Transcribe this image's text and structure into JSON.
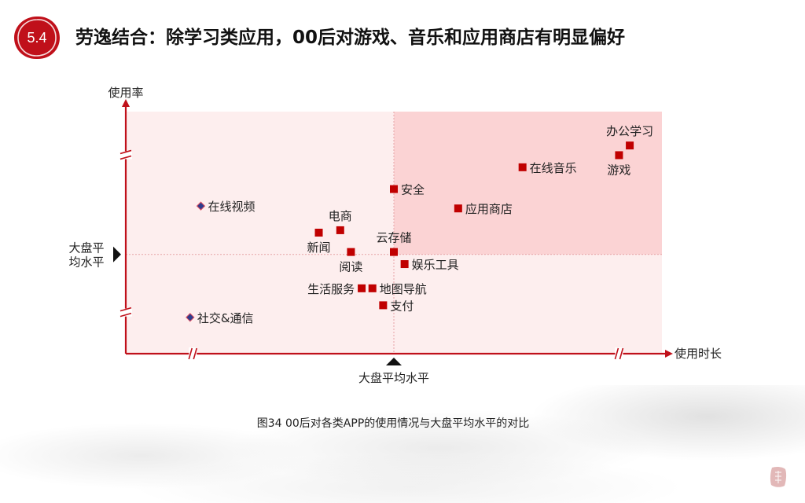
{
  "header": {
    "section_number": "5.4",
    "title": "劳逸结合：除学习类应用，00后对游戏、音乐和应用商店有明显偏好"
  },
  "caption": "图34 00后对各类APP的使用情况与大盘平均水平的对比",
  "colors": {
    "accent": "#c0101a",
    "marker": "#c00000",
    "quadrant_high": "#fbd3d4",
    "quadrant_low": "#fdeeee",
    "diamond_marker": "#2f3c8c"
  },
  "icons": {
    "badge": "circle-badge-icon",
    "seal": "seal-stamp-icon",
    "axis_break": "axis-break-icon",
    "avg_marker": "triangle-marker-icon"
  },
  "chart_data": {
    "type": "scatter",
    "xlabel": "使用时长",
    "ylabel": "使用率",
    "xlim": [
      0,
      100
    ],
    "ylim": [
      0,
      100
    ],
    "x_average": 50,
    "y_average": 41,
    "x_average_label": "大盘平均水平",
    "y_average_label": "大盘平 均水平",
    "y_average_label_lines": [
      "大盘平",
      "均水平"
    ],
    "grid": false,
    "shaded_quadrant": "top-right",
    "points": [
      {
        "label": "办公学习",
        "x": 94,
        "y": 86,
        "marker": "square",
        "label_pos": "top"
      },
      {
        "label": "游戏",
        "x": 92,
        "y": 82,
        "marker": "square",
        "label_pos": "bottom"
      },
      {
        "label": "在线音乐",
        "x": 74,
        "y": 77,
        "marker": "square",
        "label_pos": "right"
      },
      {
        "label": "安全",
        "x": 50,
        "y": 68,
        "marker": "square",
        "label_pos": "right"
      },
      {
        "label": "应用商店",
        "x": 62,
        "y": 60,
        "marker": "square",
        "label_pos": "right"
      },
      {
        "label": "在线视频",
        "x": 14,
        "y": 61,
        "marker": "diamond",
        "label_pos": "right"
      },
      {
        "label": "电商",
        "x": 40,
        "y": 51,
        "marker": "square",
        "label_pos": "top"
      },
      {
        "label": "新闻",
        "x": 36,
        "y": 50,
        "marker": "square",
        "label_pos": "bottom"
      },
      {
        "label": "云存储",
        "x": 50,
        "y": 42,
        "marker": "square",
        "label_pos": "top"
      },
      {
        "label": "阅读",
        "x": 42,
        "y": 42,
        "marker": "square",
        "label_pos": "bottom"
      },
      {
        "label": "娱乐工具",
        "x": 52,
        "y": 37,
        "marker": "square",
        "label_pos": "right"
      },
      {
        "label": "生活服务",
        "x": 44,
        "y": 27,
        "marker": "square",
        "label_pos": "left"
      },
      {
        "label": "地图导航",
        "x": 46,
        "y": 27,
        "marker": "square",
        "label_pos": "right"
      },
      {
        "label": "支付",
        "x": 48,
        "y": 20,
        "marker": "square",
        "label_pos": "right"
      },
      {
        "label": "社交&通信",
        "x": 12,
        "y": 15,
        "marker": "diamond",
        "label_pos": "right"
      }
    ]
  }
}
